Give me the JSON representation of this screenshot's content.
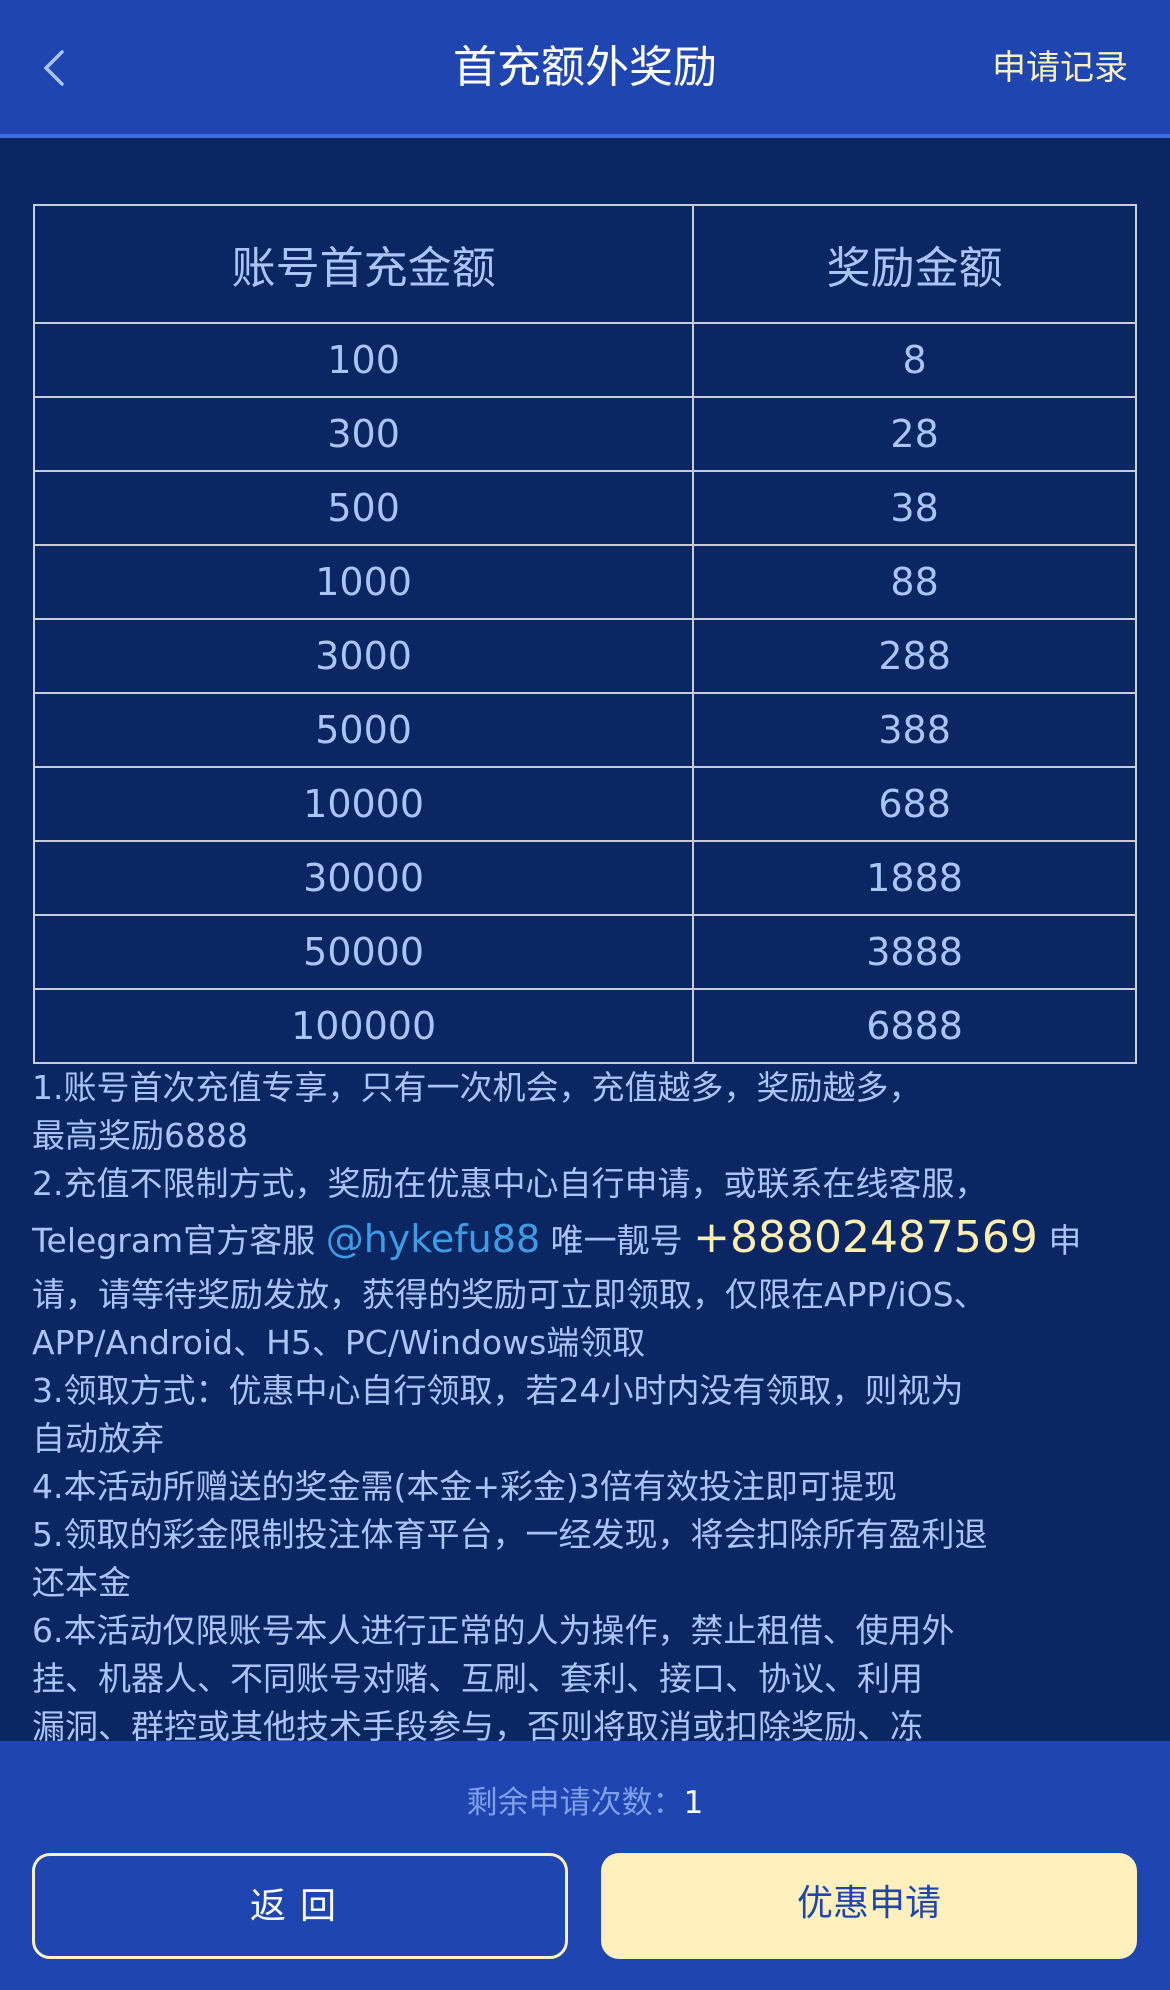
{
  "header": {
    "title": "首充额外奖励",
    "records_label": "申请记录",
    "back_icon": "chevron-left-icon"
  },
  "table": {
    "headers": [
      "账号首充金额",
      "奖励金额"
    ],
    "rows": [
      [
        "100",
        "8"
      ],
      [
        "300",
        "28"
      ],
      [
        "500",
        "38"
      ],
      [
        "1000",
        "88"
      ],
      [
        "3000",
        "288"
      ],
      [
        "5000",
        "388"
      ],
      [
        "10000",
        "688"
      ],
      [
        "30000",
        "1888"
      ],
      [
        "50000",
        "3888"
      ],
      [
        "100000",
        "6888"
      ]
    ]
  },
  "rules": {
    "l1": "1.账号首次充值专享，只有一次机会，充值越多，奖励越多，",
    "l2": "最高奖励6888",
    "l3": "2.充值不限制方式，奖励在优惠中心自行申请，或联系在线客服，",
    "tg_prefix": "Telegram官方客服 ",
    "tg_handle": "@hykefu88",
    "tg_mid": " 唯一靓号 ",
    "tg_phone": "+88802487569",
    "tg_suffix": " 申",
    "l5": "请，请等待奖励发放，获得的奖励可立即领取，仅限在APP/iOS、",
    "l6": "APP/Android、H5、PC/Windows端领取",
    "l7": "3.领取方式：优惠中心自行领取，若24小时内没有领取，则视为",
    "l8": "自动放弃",
    "l9": "4.本活动所赠送的奖金需(本金+彩金)3倍有效投注即可提现",
    "l10": "5.领取的彩金限制投注体育平台，一经发现，将会扣除所有盈利退",
    "l11": "还本金",
    "l12": "6.本活动仅限账号本人进行正常的人为操作，禁止租借、使用外",
    "l13": "挂、机器人、不同账号对赌、互刷、套利、接口、协议、利用",
    "l14": "漏洞、群控或其他技术手段参与，否则将取消或扣除奖励、冻"
  },
  "footer": {
    "remaining_label": "剩余申请次数：",
    "remaining_count": "1",
    "back_label": "返回",
    "apply_label": "优惠申请"
  },
  "colors": {
    "header": "#1e45b0",
    "background": "#0b2763",
    "text": "#a9c4f5",
    "accent_cream": "#fff0bd",
    "link": "#3e9be6"
  }
}
